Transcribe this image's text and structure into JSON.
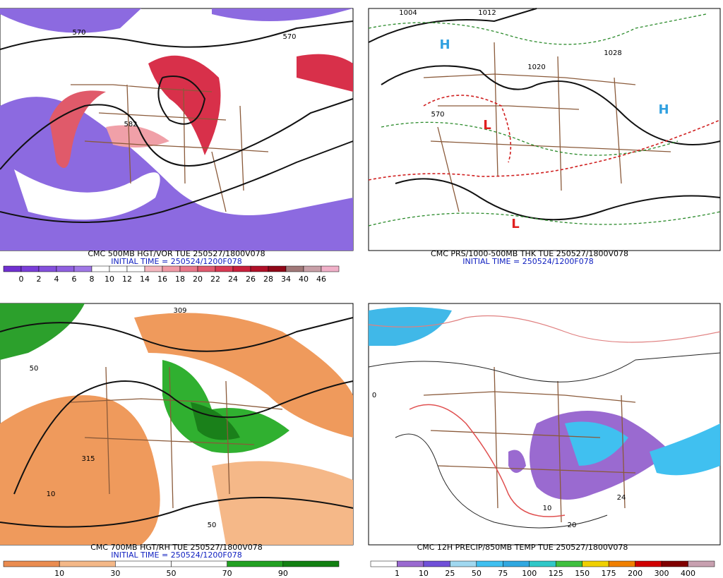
{
  "panels": [
    {
      "caption": "CMC 500MB HGT/VOR TUE 250527/1800V078",
      "initial_time": "INITIAL TIME = 250524/1200F078",
      "map_labels": [
        "570",
        "582",
        "570"
      ],
      "colorbar": {
        "labels": [
          "0",
          "2",
          "4",
          "6",
          "8",
          "10",
          "12",
          "14",
          "16",
          "18",
          "20",
          "22",
          "24",
          "26",
          "28",
          "34",
          "40",
          "46"
        ],
        "colors": [
          "#7030d0",
          "#7a3ed8",
          "#8450dc",
          "#9060e0",
          "#a078e6",
          "#ffffff",
          "#ffffff",
          "#ffffff",
          "#f4b8c0",
          "#ef9aa6",
          "#e8788a",
          "#e05a6e",
          "#d83a54",
          "#c8203c",
          "#b01028",
          "#900818",
          "#a07878",
          "#c8a0a8",
          "#f0b0c8"
        ]
      }
    },
    {
      "caption": "CMC PRS/1000-500MB THK TUE 250527/1800V078",
      "initial_time": "INITIAL TIME = 250524/1200F078",
      "map_labels": [
        "1004",
        "1012",
        "1020",
        "1028",
        "570",
        "L",
        "H"
      ]
    },
    {
      "caption": "CMC 700MB HGT/RH TUE 250527/1800V078",
      "initial_time": "INITIAL TIME = 250524/1200F078",
      "map_labels": [
        "309",
        "315",
        "50",
        "10"
      ],
      "colorbar": {
        "labels": [
          "10",
          "30",
          "50",
          "70",
          "90"
        ],
        "colors": [
          "#ea8c50",
          "#f4b888",
          "#ffffff",
          "#ffffff",
          "#22a022",
          "#128012"
        ]
      }
    },
    {
      "caption": "CMC 12H PRECIP/850MB TEMP TUE 250527/1800V078",
      "map_labels": [
        "24",
        "20",
        "0",
        "10"
      ],
      "colorbar": {
        "labels": [
          "1",
          "10",
          "25",
          "50",
          "75",
          "100",
          "125",
          "150",
          "175",
          "200",
          "300",
          "400"
        ],
        "colors": [
          "#ffffff",
          "#9a6ad0",
          "#7050d8",
          "#a0d8f0",
          "#40c0f0",
          "#30a8e0",
          "#30c8c8",
          "#40c040",
          "#f0d000",
          "#f08000",
          "#d00000",
          "#800000",
          "#c8a0b0"
        ]
      }
    }
  ]
}
